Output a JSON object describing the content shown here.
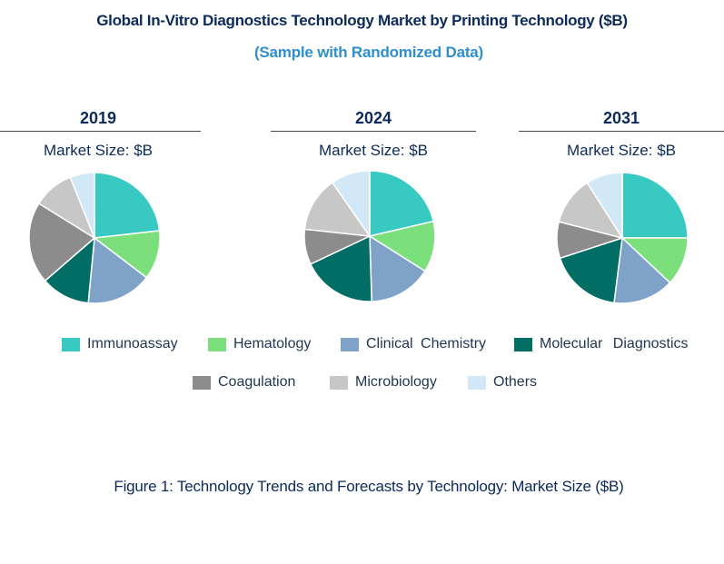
{
  "title": "Global In-Vitro Diagnostics Technology Market by Printing Technology ($B)",
  "subtitle": "(Sample with Randomized Data)",
  "caption": "Figure 1: Technology Trends and Forecasts by Technology: Market Size ($B)",
  "colors": {
    "Immunoassay": "#38c9c3",
    "Hematology": "#7be07b",
    "Clinical Chemistry": "#7fa3c8",
    "Molecular Diagnostics": "#016d65",
    "Coagulation": "#8c8c8c",
    "Microbiology": "#c7c7c7",
    "Others": "#d2e8f7"
  },
  "chart_data": [
    {
      "type": "pie",
      "title": "2019",
      "subtitle": "Market Size: $B",
      "categories": [
        "Immunoassay",
        "Hematology",
        "Clinical Chemistry",
        "Molecular Diagnostics",
        "Coagulation",
        "Microbiology",
        "Others"
      ],
      "values": [
        23,
        12,
        16,
        12,
        20,
        10,
        6
      ]
    },
    {
      "type": "pie",
      "title": "2024",
      "subtitle": "Market Size: $B",
      "categories": [
        "Immunoassay",
        "Hematology",
        "Clinical Chemistry",
        "Molecular Diagnostics",
        "Coagulation",
        "Microbiology",
        "Others"
      ],
      "values": [
        22,
        13,
        16,
        19,
        9,
        14,
        10
      ]
    },
    {
      "type": "pie",
      "title": "2031",
      "subtitle": "Market Size: $B",
      "categories": [
        "Immunoassay",
        "Hematology",
        "Clinical Chemistry",
        "Molecular Diagnostics",
        "Coagulation",
        "Microbiology",
        "Others"
      ],
      "values": [
        25,
        12,
        15,
        18,
        9,
        12,
        9
      ]
    }
  ],
  "legend": [
    "Immunoassay",
    "Hematology",
    "Clinical Chemistry",
    "Molecular Diagnostics",
    "Coagulation",
    "Microbiology",
    "Others"
  ]
}
